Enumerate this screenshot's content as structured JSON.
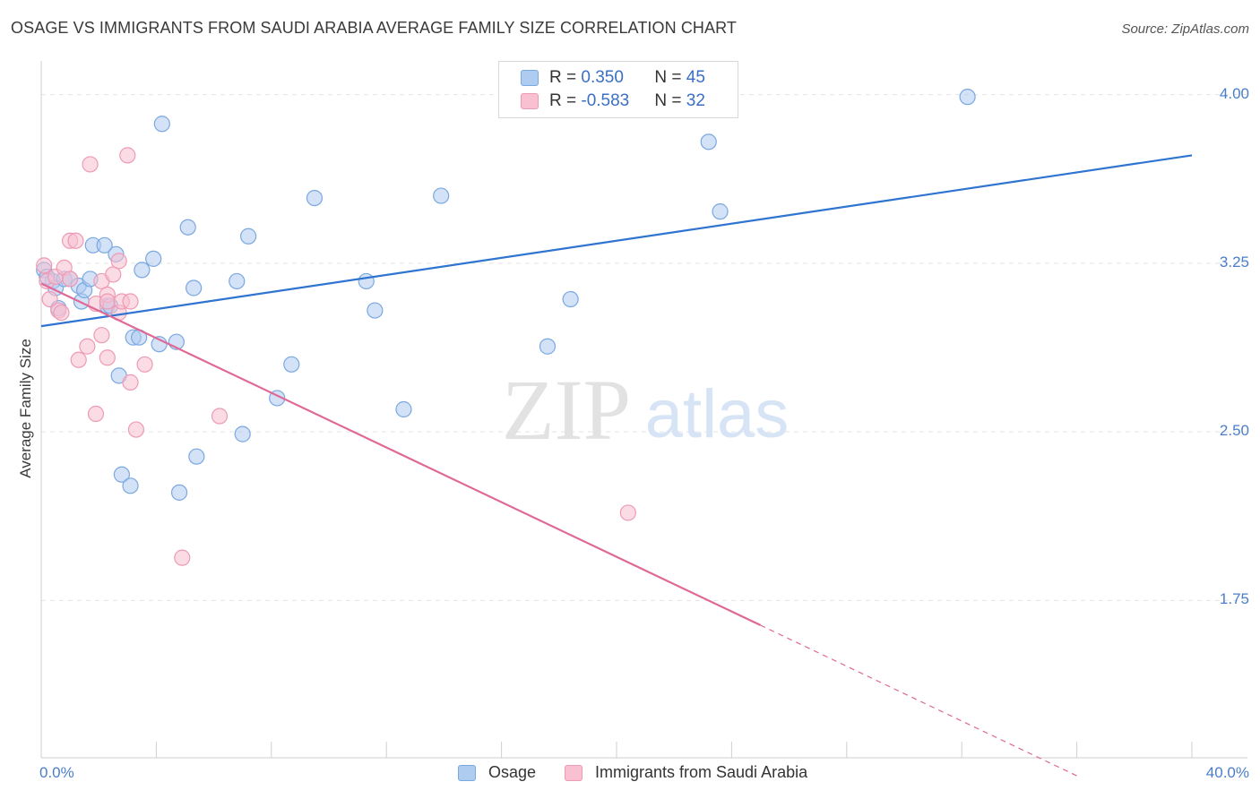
{
  "header": {
    "title": "OSAGE VS IMMIGRANTS FROM SAUDI ARABIA AVERAGE FAMILY SIZE CORRELATION CHART",
    "source": "Source: ZipAtlas.com"
  },
  "watermark": {
    "zip": "ZIP",
    "atlas": "atlas"
  },
  "legend": {
    "rows": [
      {
        "r_label": "R = ",
        "r_value": "0.350",
        "n_label": "N = ",
        "n_value": "45"
      },
      {
        "r_label": "R = ",
        "r_value": "-0.583",
        "n_label": "N = ",
        "n_value": "32"
      }
    ]
  },
  "colors": {
    "osage_fill": "#aecbf0",
    "osage_stroke": "#7aa8e0",
    "osage_line": "#2f74d0",
    "saudi_fill": "#f8c0d0",
    "saudi_stroke": "#ee9ab4",
    "saudi_line": "#e06896",
    "tick_text": "#4a7ec8",
    "grid": "#e4e4e4"
  },
  "chart_data": {
    "type": "scatter",
    "title": "OSAGE VS IMMIGRANTS FROM SAUDI ARABIA AVERAGE FAMILY SIZE CORRELATION CHART",
    "xlabel": "",
    "ylabel": "Average Family Size",
    "xlim": [
      0,
      40
    ],
    "ylim": [
      1.05,
      4.15
    ],
    "x_tick_labels": [
      "0.0%",
      "40.0%"
    ],
    "y_ticks": [
      1.75,
      2.5,
      3.25,
      4.0
    ],
    "y_tick_labels": [
      "1.75",
      "2.50",
      "3.25",
      "4.00"
    ],
    "grid": true,
    "legend_position": "top-center",
    "series": [
      {
        "name": "Osage",
        "r": 0.35,
        "n": 45,
        "points": [
          [
            0.1,
            3.22
          ],
          [
            0.4,
            3.17
          ],
          [
            0.5,
            3.14
          ],
          [
            0.8,
            3.18
          ],
          [
            1.0,
            3.18
          ],
          [
            1.3,
            3.15
          ],
          [
            1.4,
            3.08
          ],
          [
            1.5,
            3.13
          ],
          [
            1.7,
            3.18
          ],
          [
            1.8,
            3.33
          ],
          [
            2.2,
            3.33
          ],
          [
            2.3,
            3.06
          ],
          [
            2.4,
            3.06
          ],
          [
            2.6,
            3.29
          ],
          [
            2.7,
            2.75
          ],
          [
            2.8,
            2.31
          ],
          [
            3.1,
            2.26
          ],
          [
            3.2,
            2.92
          ],
          [
            3.4,
            2.92
          ],
          [
            3.5,
            3.22
          ],
          [
            3.9,
            3.27
          ],
          [
            4.1,
            2.89
          ],
          [
            4.2,
            3.87
          ],
          [
            4.7,
            2.9
          ],
          [
            4.8,
            2.23
          ],
          [
            5.1,
            3.41
          ],
          [
            5.3,
            3.14
          ],
          [
            5.4,
            2.39
          ],
          [
            6.8,
            3.17
          ],
          [
            7.0,
            2.49
          ],
          [
            7.2,
            3.37
          ],
          [
            8.2,
            2.65
          ],
          [
            8.7,
            2.8
          ],
          [
            9.5,
            3.54
          ],
          [
            11.3,
            3.17
          ],
          [
            11.6,
            3.04
          ],
          [
            12.6,
            2.6
          ],
          [
            13.9,
            3.55
          ],
          [
            17.6,
            2.88
          ],
          [
            18.4,
            3.09
          ],
          [
            23.2,
            3.79
          ],
          [
            23.6,
            3.48
          ],
          [
            32.2,
            3.99
          ],
          [
            0.2,
            3.19
          ],
          [
            0.6,
            3.05
          ]
        ],
        "trend": {
          "x": [
            0,
            40
          ],
          "y": [
            2.97,
            3.73
          ]
        }
      },
      {
        "name": "Immigrants from Saudi Arabia",
        "r": -0.583,
        "n": 32,
        "points": [
          [
            0.1,
            3.24
          ],
          [
            0.2,
            3.17
          ],
          [
            0.3,
            3.09
          ],
          [
            0.5,
            3.19
          ],
          [
            0.6,
            3.04
          ],
          [
            0.8,
            3.23
          ],
          [
            1.0,
            3.35
          ],
          [
            1.0,
            3.18
          ],
          [
            1.2,
            3.35
          ],
          [
            1.3,
            2.82
          ],
          [
            1.6,
            2.88
          ],
          [
            1.7,
            3.69
          ],
          [
            1.9,
            3.07
          ],
          [
            1.9,
            2.58
          ],
          [
            2.1,
            3.17
          ],
          [
            2.1,
            2.93
          ],
          [
            2.3,
            3.11
          ],
          [
            2.3,
            3.08
          ],
          [
            2.3,
            2.83
          ],
          [
            2.5,
            3.2
          ],
          [
            2.7,
            3.03
          ],
          [
            2.7,
            3.26
          ],
          [
            2.8,
            3.08
          ],
          [
            3.0,
            3.73
          ],
          [
            3.1,
            3.08
          ],
          [
            3.1,
            2.72
          ],
          [
            3.3,
            2.51
          ],
          [
            3.6,
            2.8
          ],
          [
            4.9,
            1.94
          ],
          [
            6.2,
            2.57
          ],
          [
            20.4,
            2.14
          ],
          [
            0.7,
            3.03
          ]
        ],
        "trend": {
          "x": [
            0,
            25
          ],
          "y": [
            3.16,
            1.64
          ]
        },
        "trend_extension": {
          "x": [
            25,
            36
          ],
          "y": [
            1.64,
            0.97
          ]
        }
      }
    ]
  },
  "bottom_legend": {
    "items": [
      {
        "label": "Osage"
      },
      {
        "label": "Immigrants from Saudi Arabia"
      }
    ]
  }
}
